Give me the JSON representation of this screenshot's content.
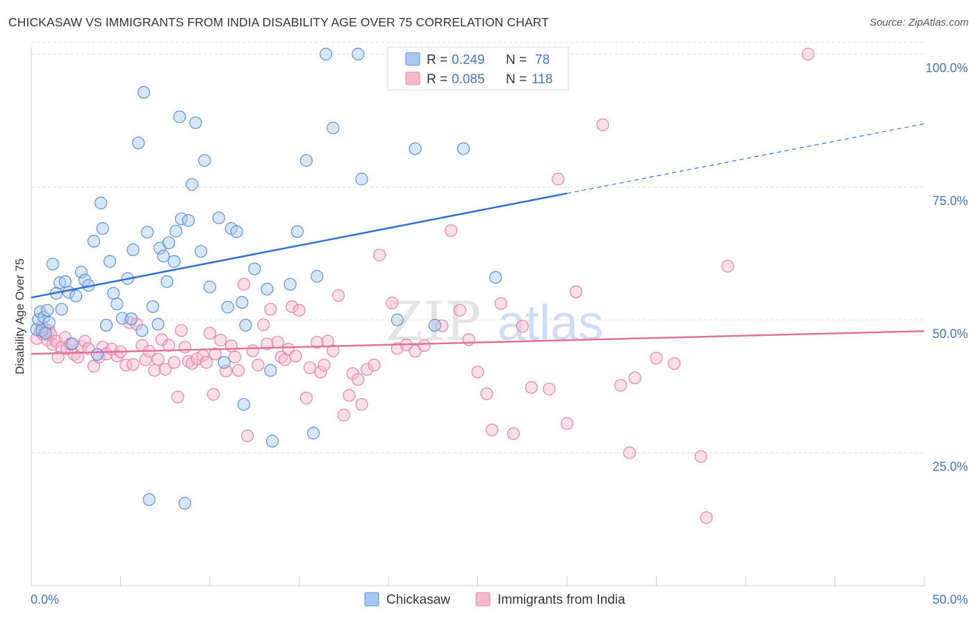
{
  "title": "CHICKASAW VS IMMIGRANTS FROM INDIA DISABILITY AGE OVER 75 CORRELATION CHART",
  "source": "Source: ZipAtlas.com",
  "watermark": {
    "zip": "ZIP",
    "atlas": "atlas"
  },
  "colors": {
    "blue_fill": "#a9c8ef",
    "blue_stroke": "#5b8fd6",
    "blue_line": "#2f6fd0",
    "pink_fill": "#f6b8cc",
    "pink_stroke": "#e883a5",
    "pink_line": "#e0719a",
    "grid": "#dddddd",
    "tick_text": "#4472c4"
  },
  "legend": {
    "rows": [
      {
        "r_label": "R =",
        "r_value": "0.249",
        "n_label": "N =",
        "n_value": "78"
      },
      {
        "r_label": "R =",
        "r_value": "0.085",
        "n_label": "N =",
        "n_value": "118"
      }
    ]
  },
  "chart_data": {
    "type": "scatter",
    "title": "CHICKASAW VS IMMIGRANTS FROM INDIA DISABILITY AGE OVER 75 CORRELATION CHART",
    "xlabel": "",
    "ylabel": "Disability Age Over 75",
    "xlim": [
      0,
      50
    ],
    "ylim": [
      0,
      105
    ],
    "x_tick_labels": [
      "0.0%",
      "50.0%"
    ],
    "y_ticks": [
      25,
      50,
      75,
      100
    ],
    "y_tick_labels": [
      "25.0%",
      "50.0%",
      "75.0%",
      "100.0%"
    ],
    "grid": true,
    "legend_position": "top-center",
    "series": [
      {
        "name": "Chickasaw",
        "color": "#5b8fd6",
        "R": 0.249,
        "N": 78,
        "trend": {
          "x": [
            0,
            30
          ],
          "y": [
            54.2,
            73.8
          ],
          "dashed_to": [
            50,
            86.9
          ]
        },
        "points": [
          [
            0.3,
            48.2
          ],
          [
            0.4,
            50.1
          ],
          [
            0.5,
            51.5
          ],
          [
            0.6,
            48.0
          ],
          [
            0.7,
            50.5
          ],
          [
            0.8,
            47.5
          ],
          [
            0.9,
            51.8
          ],
          [
            1.0,
            49.5
          ],
          [
            1.2,
            60.5
          ],
          [
            1.4,
            55.0
          ],
          [
            1.6,
            57.0
          ],
          [
            1.7,
            52.0
          ],
          [
            1.9,
            57.2
          ],
          [
            2.1,
            55.2
          ],
          [
            2.3,
            45.5
          ],
          [
            2.5,
            54.5
          ],
          [
            2.8,
            59.0
          ],
          [
            3.0,
            57.5
          ],
          [
            3.2,
            56.5
          ],
          [
            3.5,
            64.8
          ],
          [
            3.7,
            43.5
          ],
          [
            3.9,
            72.0
          ],
          [
            4.0,
            67.2
          ],
          [
            4.2,
            49.0
          ],
          [
            4.4,
            61.0
          ],
          [
            4.6,
            55.0
          ],
          [
            4.8,
            53.0
          ],
          [
            5.1,
            50.3
          ],
          [
            5.4,
            57.8
          ],
          [
            5.6,
            50.2
          ],
          [
            5.7,
            63.2
          ],
          [
            6.0,
            83.3
          ],
          [
            6.2,
            48.0
          ],
          [
            6.3,
            92.8
          ],
          [
            6.5,
            66.5
          ],
          [
            6.6,
            16.2
          ],
          [
            6.8,
            52.5
          ],
          [
            7.1,
            49.2
          ],
          [
            7.2,
            63.5
          ],
          [
            7.4,
            62.0
          ],
          [
            7.6,
            57.2
          ],
          [
            7.7,
            64.5
          ],
          [
            8.0,
            61.0
          ],
          [
            8.1,
            66.7
          ],
          [
            8.3,
            88.2
          ],
          [
            8.4,
            69.0
          ],
          [
            8.6,
            15.5
          ],
          [
            8.8,
            68.7
          ],
          [
            9.0,
            75.5
          ],
          [
            9.2,
            87.1
          ],
          [
            9.5,
            62.9
          ],
          [
            9.7,
            80.0
          ],
          [
            10.0,
            56.2
          ],
          [
            10.5,
            69.2
          ],
          [
            10.8,
            42.0
          ],
          [
            11.0,
            52.4
          ],
          [
            11.2,
            67.2
          ],
          [
            11.5,
            66.6
          ],
          [
            11.8,
            53.3
          ],
          [
            11.9,
            34.1
          ],
          [
            12.0,
            49.0
          ],
          [
            12.5,
            59.6
          ],
          [
            13.2,
            55.8
          ],
          [
            13.4,
            40.5
          ],
          [
            13.5,
            27.2
          ],
          [
            14.5,
            56.7
          ],
          [
            14.9,
            66.6
          ],
          [
            15.4,
            80.0
          ],
          [
            15.8,
            28.7
          ],
          [
            16.0,
            58.2
          ],
          [
            16.5,
            100.0
          ],
          [
            16.9,
            86.1
          ],
          [
            18.3,
            100.0
          ],
          [
            18.5,
            76.5
          ],
          [
            20.5,
            50.0
          ],
          [
            21.5,
            82.2
          ],
          [
            22.6,
            49.0
          ],
          [
            24.2,
            82.2
          ],
          [
            26.0,
            58.0
          ]
        ]
      },
      {
        "name": "Immigrants from India",
        "color": "#e883a5",
        "R": 0.085,
        "N": 118,
        "trend": {
          "x": [
            0,
            50
          ],
          "y": [
            43.6,
            47.9
          ]
        },
        "points": [
          [
            0.3,
            46.5
          ],
          [
            0.5,
            47.8
          ],
          [
            0.6,
            48.8
          ],
          [
            0.7,
            47.2
          ],
          [
            0.8,
            48.2
          ],
          [
            0.9,
            46.2
          ],
          [
            1.0,
            48.0
          ],
          [
            1.1,
            47.2
          ],
          [
            1.2,
            45.4
          ],
          [
            1.4,
            46.0
          ],
          [
            1.5,
            43.0
          ],
          [
            1.7,
            44.8
          ],
          [
            1.9,
            46.7
          ],
          [
            2.0,
            44.5
          ],
          [
            2.2,
            45.5
          ],
          [
            2.4,
            43.5
          ],
          [
            2.6,
            43.0
          ],
          [
            2.8,
            45.0
          ],
          [
            3.0,
            46.0
          ],
          [
            3.2,
            44.6
          ],
          [
            3.5,
            41.3
          ],
          [
            3.8,
            43.0
          ],
          [
            4.0,
            44.9
          ],
          [
            4.2,
            43.6
          ],
          [
            4.5,
            44.5
          ],
          [
            4.8,
            43.2
          ],
          [
            5.0,
            44.0
          ],
          [
            5.3,
            41.5
          ],
          [
            5.5,
            49.5
          ],
          [
            5.7,
            41.6
          ],
          [
            5.9,
            49.2
          ],
          [
            6.2,
            45.2
          ],
          [
            6.4,
            42.5
          ],
          [
            6.6,
            44.1
          ],
          [
            6.9,
            40.5
          ],
          [
            7.1,
            42.6
          ],
          [
            7.3,
            46.3
          ],
          [
            7.5,
            40.7
          ],
          [
            7.7,
            45.2
          ],
          [
            8.0,
            42.0
          ],
          [
            8.2,
            35.5
          ],
          [
            8.4,
            48.0
          ],
          [
            8.6,
            44.9
          ],
          [
            8.8,
            42.2
          ],
          [
            9.0,
            41.8
          ],
          [
            9.3,
            42.7
          ],
          [
            9.6,
            43.3
          ],
          [
            9.8,
            42.0
          ],
          [
            10.0,
            47.5
          ],
          [
            10.3,
            43.6
          ],
          [
            10.6,
            46.2
          ],
          [
            10.9,
            40.4
          ],
          [
            11.2,
            45.1
          ],
          [
            11.4,
            43.0
          ],
          [
            11.6,
            40.5
          ],
          [
            11.9,
            56.7
          ],
          [
            12.1,
            28.2
          ],
          [
            12.4,
            44.2
          ],
          [
            12.7,
            41.5
          ],
          [
            13.0,
            49.1
          ],
          [
            13.2,
            45.5
          ],
          [
            13.4,
            52.0
          ],
          [
            13.8,
            45.8
          ],
          [
            14.0,
            43.0
          ],
          [
            14.2,
            42.5
          ],
          [
            14.4,
            44.5
          ],
          [
            14.6,
            52.5
          ],
          [
            14.8,
            43.2
          ],
          [
            15.0,
            51.8
          ],
          [
            15.4,
            35.3
          ],
          [
            15.6,
            41.0
          ],
          [
            16.0,
            45.8
          ],
          [
            16.2,
            40.2
          ],
          [
            16.4,
            41.5
          ],
          [
            16.6,
            46.0
          ],
          [
            16.9,
            44.2
          ],
          [
            17.2,
            54.6
          ],
          [
            17.5,
            32.1
          ],
          [
            17.8,
            35.8
          ],
          [
            18.0,
            39.9
          ],
          [
            18.3,
            38.8
          ],
          [
            18.5,
            34.1
          ],
          [
            18.8,
            40.7
          ],
          [
            19.2,
            41.5
          ],
          [
            19.5,
            62.2
          ],
          [
            20.2,
            53.2
          ],
          [
            20.5,
            44.6
          ],
          [
            21.0,
            45.3
          ],
          [
            21.5,
            44.1
          ],
          [
            22.0,
            45.2
          ],
          [
            23.0,
            48.9
          ],
          [
            23.5,
            66.8
          ],
          [
            24.0,
            51.8
          ],
          [
            24.5,
            46.3
          ],
          [
            25.0,
            40.2
          ],
          [
            25.5,
            36.1
          ],
          [
            25.8,
            29.3
          ],
          [
            26.3,
            53.1
          ],
          [
            27.0,
            28.6
          ],
          [
            27.5,
            48.8
          ],
          [
            28.0,
            37.3
          ],
          [
            29.0,
            37.0
          ],
          [
            29.5,
            76.5
          ],
          [
            30.0,
            30.5
          ],
          [
            30.5,
            55.3
          ],
          [
            32.0,
            86.7
          ],
          [
            33.0,
            37.7
          ],
          [
            33.5,
            25.0
          ],
          [
            33.8,
            39.1
          ],
          [
            35.0,
            42.8
          ],
          [
            36.0,
            41.8
          ],
          [
            37.5,
            24.3
          ],
          [
            37.8,
            12.8
          ],
          [
            39.0,
            60.1
          ],
          [
            43.5,
            100.0
          ],
          [
            10.2,
            36.0
          ]
        ]
      }
    ]
  }
}
